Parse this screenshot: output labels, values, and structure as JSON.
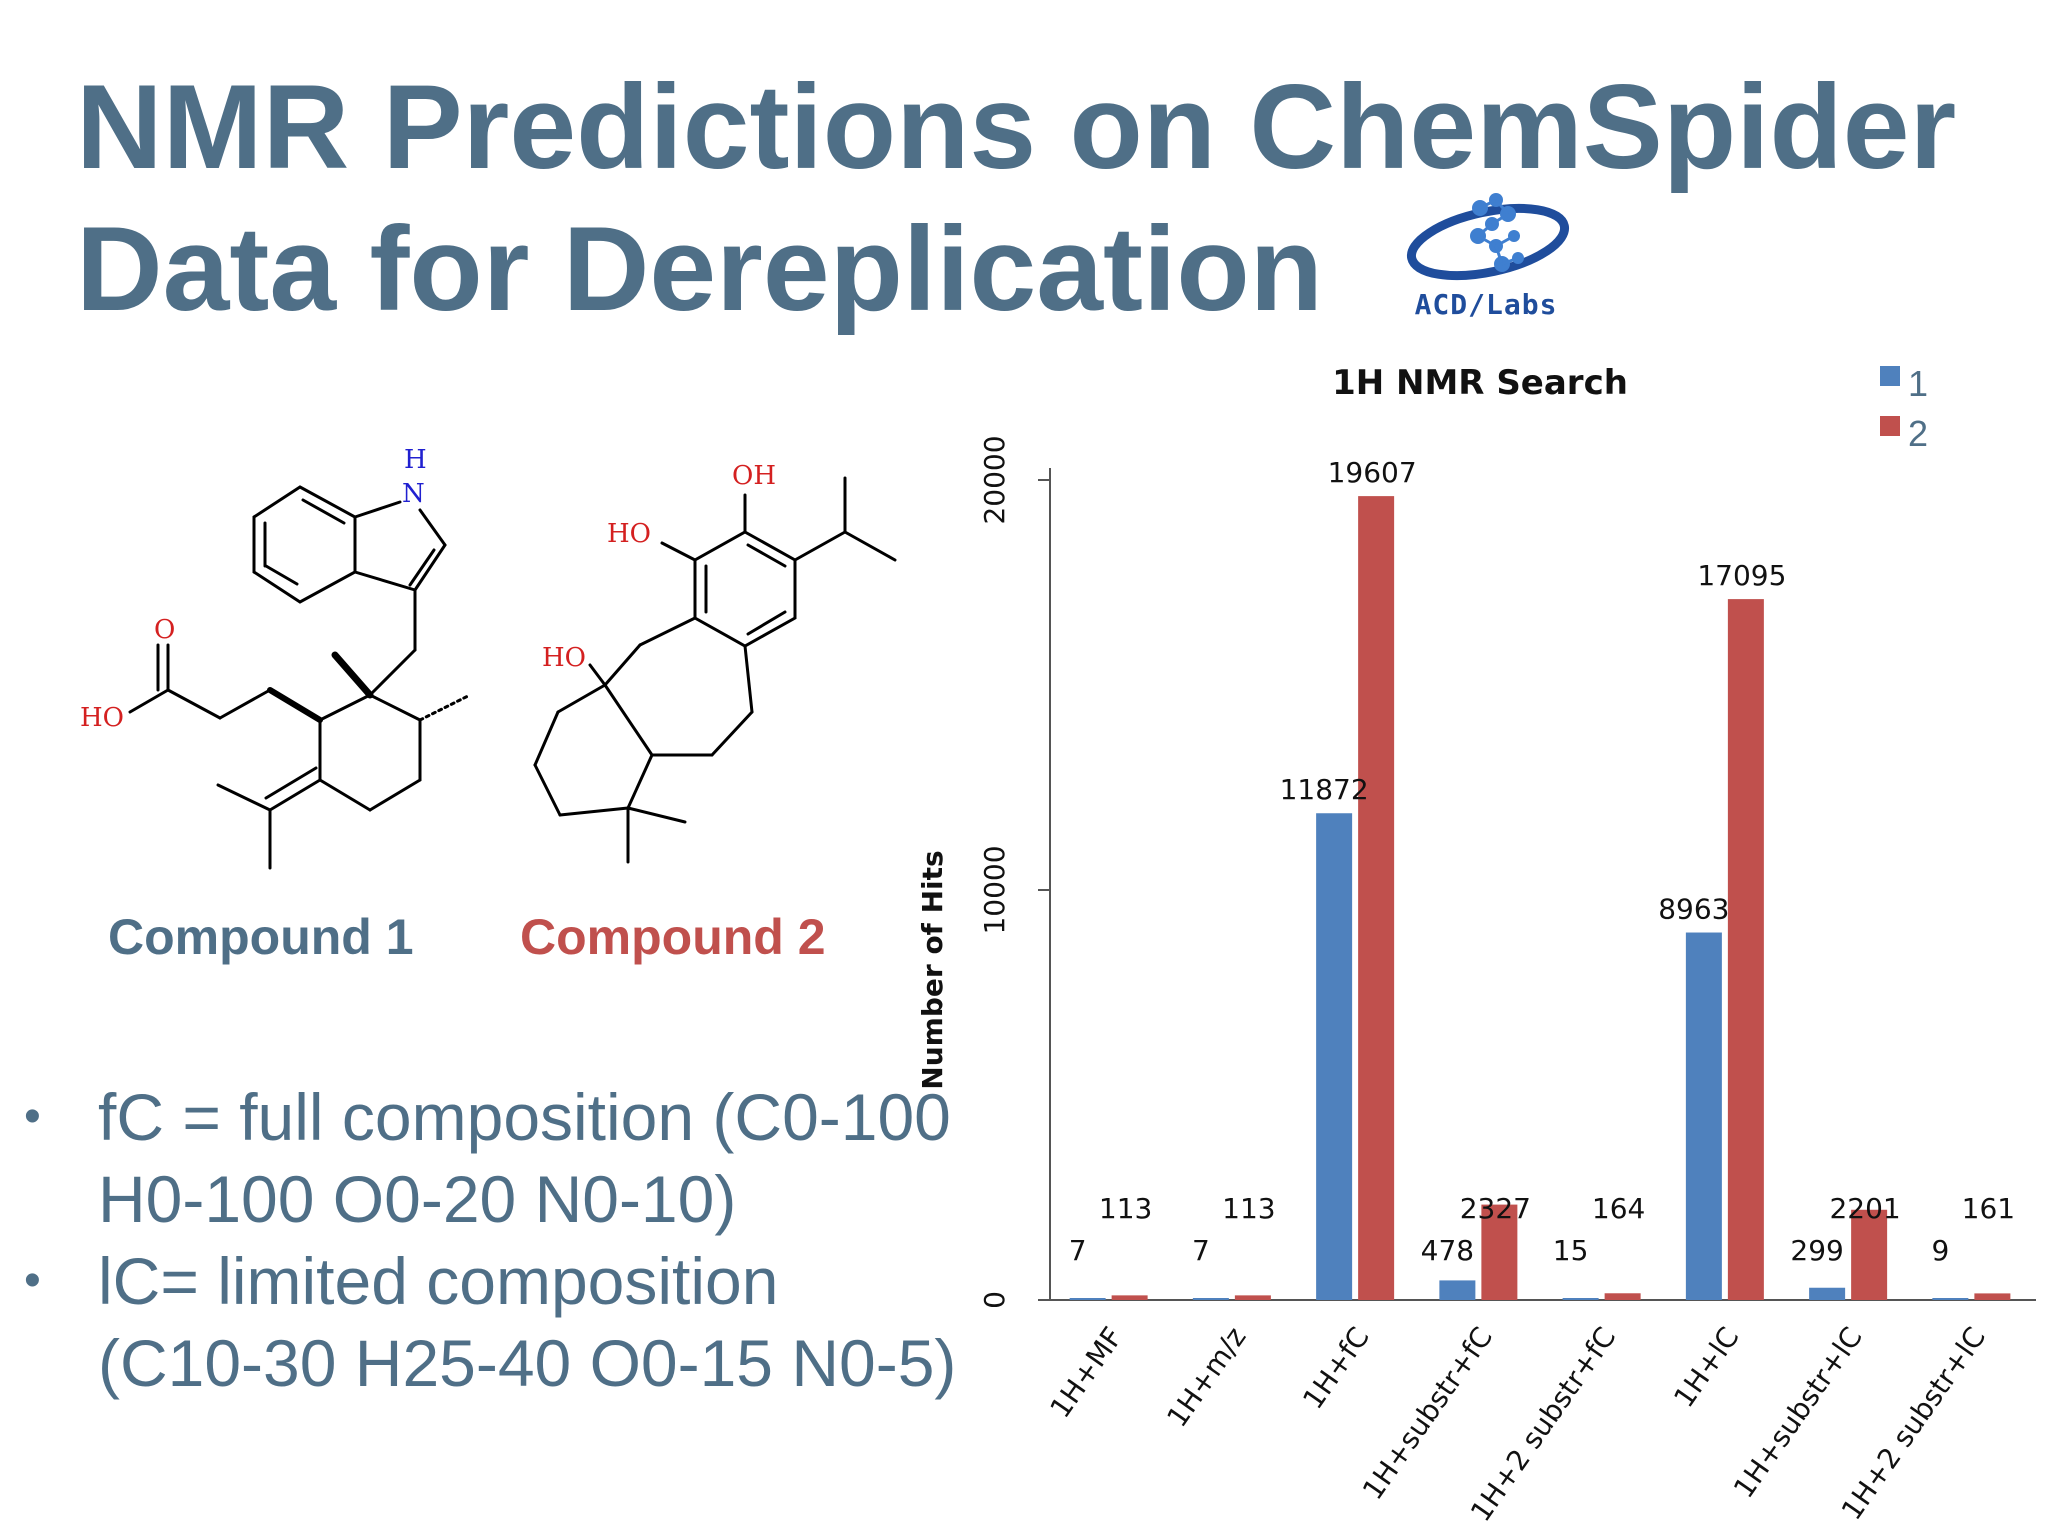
{
  "slide": {
    "title_line1": "NMR Predictions on ChemSpider",
    "title_line2": "Data for Dereplication",
    "logo_text": "ACD/Labs",
    "compound1_label": "Compound 1",
    "compound2_label": "Compound 2",
    "bullets": [
      {
        "text_line1": "fC = full composition (C0-100",
        "text_line2": "H0-100 O0-20 N0-10)"
      },
      {
        "text_line1": "lC= limited composition",
        "text_line2": "(C10-30 H25-40 O0-15 N0-5)"
      }
    ],
    "bullet_symbol": "•"
  },
  "molecule_labels": {
    "m1_h": "H",
    "m1_n": "N",
    "m1_o": "O",
    "m1_ho": "HO",
    "m2_oh": "OH",
    "m2_ho_top": "HO",
    "m2_ho_mid": "HO"
  },
  "colors": {
    "title": "#4f6f87",
    "compound2": "#c0504d",
    "series1": "#4f81bd",
    "series2": "#c0504d",
    "hetero_red": "#d42020",
    "hetero_blue": "#2020d0"
  },
  "chart_data": {
    "type": "bar",
    "title": "1H NMR Search",
    "ylabel": "Number of Hits",
    "xlabel": "",
    "ylim": [
      0,
      20000
    ],
    "yticks": [
      "0",
      "10000",
      "20000"
    ],
    "legend_position": "top-right",
    "grid": false,
    "categories": [
      "1H+MF",
      "1H+m/z",
      "1H+fC",
      "1H+substr+fC",
      "1H+2 substr+fC",
      "1H+lC",
      "1H+substr+lC",
      "1H+2 substr+lC"
    ],
    "series": [
      {
        "name": "1",
        "values": [
          7,
          7,
          11872,
          478,
          15,
          8963,
          299,
          9
        ]
      },
      {
        "name": "2",
        "values": [
          113,
          113,
          19607,
          2327,
          164,
          17095,
          2201,
          161
        ]
      }
    ]
  }
}
